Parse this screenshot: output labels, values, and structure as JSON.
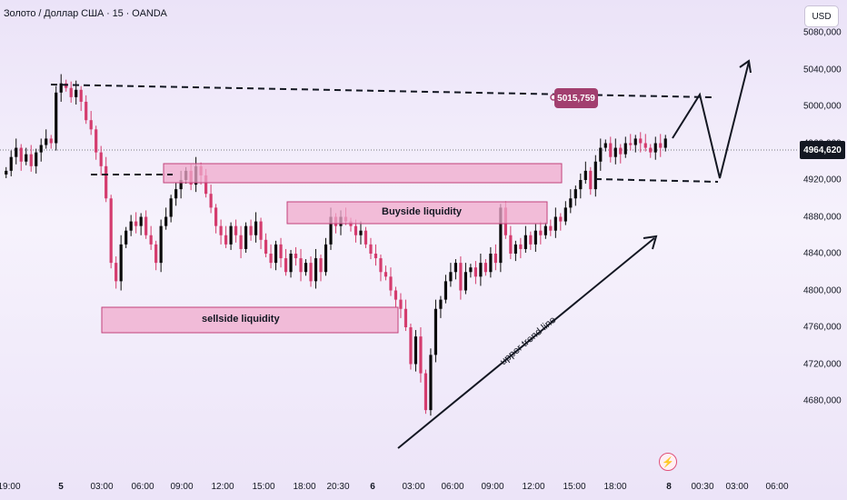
{
  "header": {
    "title": "Золото / Доллар США · 15 · OANDA",
    "currency_button": "USD"
  },
  "price_axis": {
    "labels": [
      "5080,000",
      "5040,000",
      "5000,000",
      "4960,000",
      "4920,000",
      "4880,000",
      "4840,000",
      "4800,000",
      "4760,000",
      "4720,000",
      "4680,000"
    ],
    "current_price": "4964,620"
  },
  "time_axis": {
    "labels": [
      {
        "text": "19:00",
        "bold": false
      },
      {
        "text": "5",
        "bold": true
      },
      {
        "text": "03:00",
        "bold": false
      },
      {
        "text": "06:00",
        "bold": false
      },
      {
        "text": "09:00",
        "bold": false
      },
      {
        "text": "12:00",
        "bold": false
      },
      {
        "text": "15:00",
        "bold": false
      },
      {
        "text": "18:00",
        "bold": false
      },
      {
        "text": "20:30",
        "bold": false
      },
      {
        "text": "6",
        "bold": true
      },
      {
        "text": "03:00",
        "bold": false
      },
      {
        "text": "06:00",
        "bold": false
      },
      {
        "text": "09:00",
        "bold": false
      },
      {
        "text": "12:00",
        "bold": false
      },
      {
        "text": "15:00",
        "bold": false
      },
      {
        "text": "18:00",
        "bold": false
      },
      {
        "text": "8",
        "bold": true
      },
      {
        "text": "00:30",
        "bold": false
      },
      {
        "text": "03:00",
        "bold": false
      },
      {
        "text": "06:00",
        "bold": false
      }
    ]
  },
  "annotations": {
    "buyside": "Buyside liquidity",
    "sellside": "sellside   liquidity",
    "trend": "upper trend line",
    "target": "5015,759"
  },
  "colors": {
    "up": "#0b0b0b",
    "down": "#d43c6e",
    "zone_fill": "#f0a9cc",
    "zone_stroke": "#c2417a",
    "badge": "#a23f6f"
  },
  "chart_data": {
    "type": "candlestick",
    "symbol": "Золото / Доллар США",
    "interval": "15",
    "source": "OANDA",
    "ylim": [
      4660,
      5090
    ],
    "current_price": 4964.62,
    "closes": [
      4930,
      4945,
      4955,
      4940,
      4948,
      4935,
      4950,
      4958,
      4965,
      4960,
      5015,
      5025,
      5020,
      5010,
      5018,
      5005,
      4985,
      4975,
      4950,
      4935,
      4900,
      4830,
      4810,
      4850,
      4865,
      4875,
      4870,
      4880,
      4860,
      4850,
      4830,
      4870,
      4880,
      4900,
      4910,
      4920,
      4930,
      4915,
      4935,
      4925,
      4905,
      4890,
      4870,
      4860,
      4850,
      4870,
      4860,
      4845,
      4870,
      4860,
      4875,
      4855,
      4840,
      4830,
      4850,
      4835,
      4820,
      4840,
      4835,
      4820,
      4830,
      4810,
      4835,
      4820,
      4850,
      4880,
      4870,
      4880,
      4875,
      4870,
      4860,
      4865,
      4850,
      4840,
      4835,
      4820,
      4815,
      4800,
      4790,
      4780,
      4760,
      4720,
      4750,
      4710,
      4670,
      4730,
      4780,
      4790,
      4810,
      4820,
      4830,
      4800,
      4820,
      4825,
      4815,
      4830,
      4820,
      4840,
      4830,
      4890,
      4860,
      4840,
      4850,
      4845,
      4860,
      4850,
      4865,
      4860,
      4870,
      4865,
      4880,
      4875,
      4890,
      4900,
      4910,
      4920,
      4930,
      4910,
      4940,
      4955,
      4960,
      4945,
      4955,
      4948,
      4960,
      4958,
      4965,
      4960,
      4955,
      4950,
      4960,
      4955,
      4965
    ]
  }
}
